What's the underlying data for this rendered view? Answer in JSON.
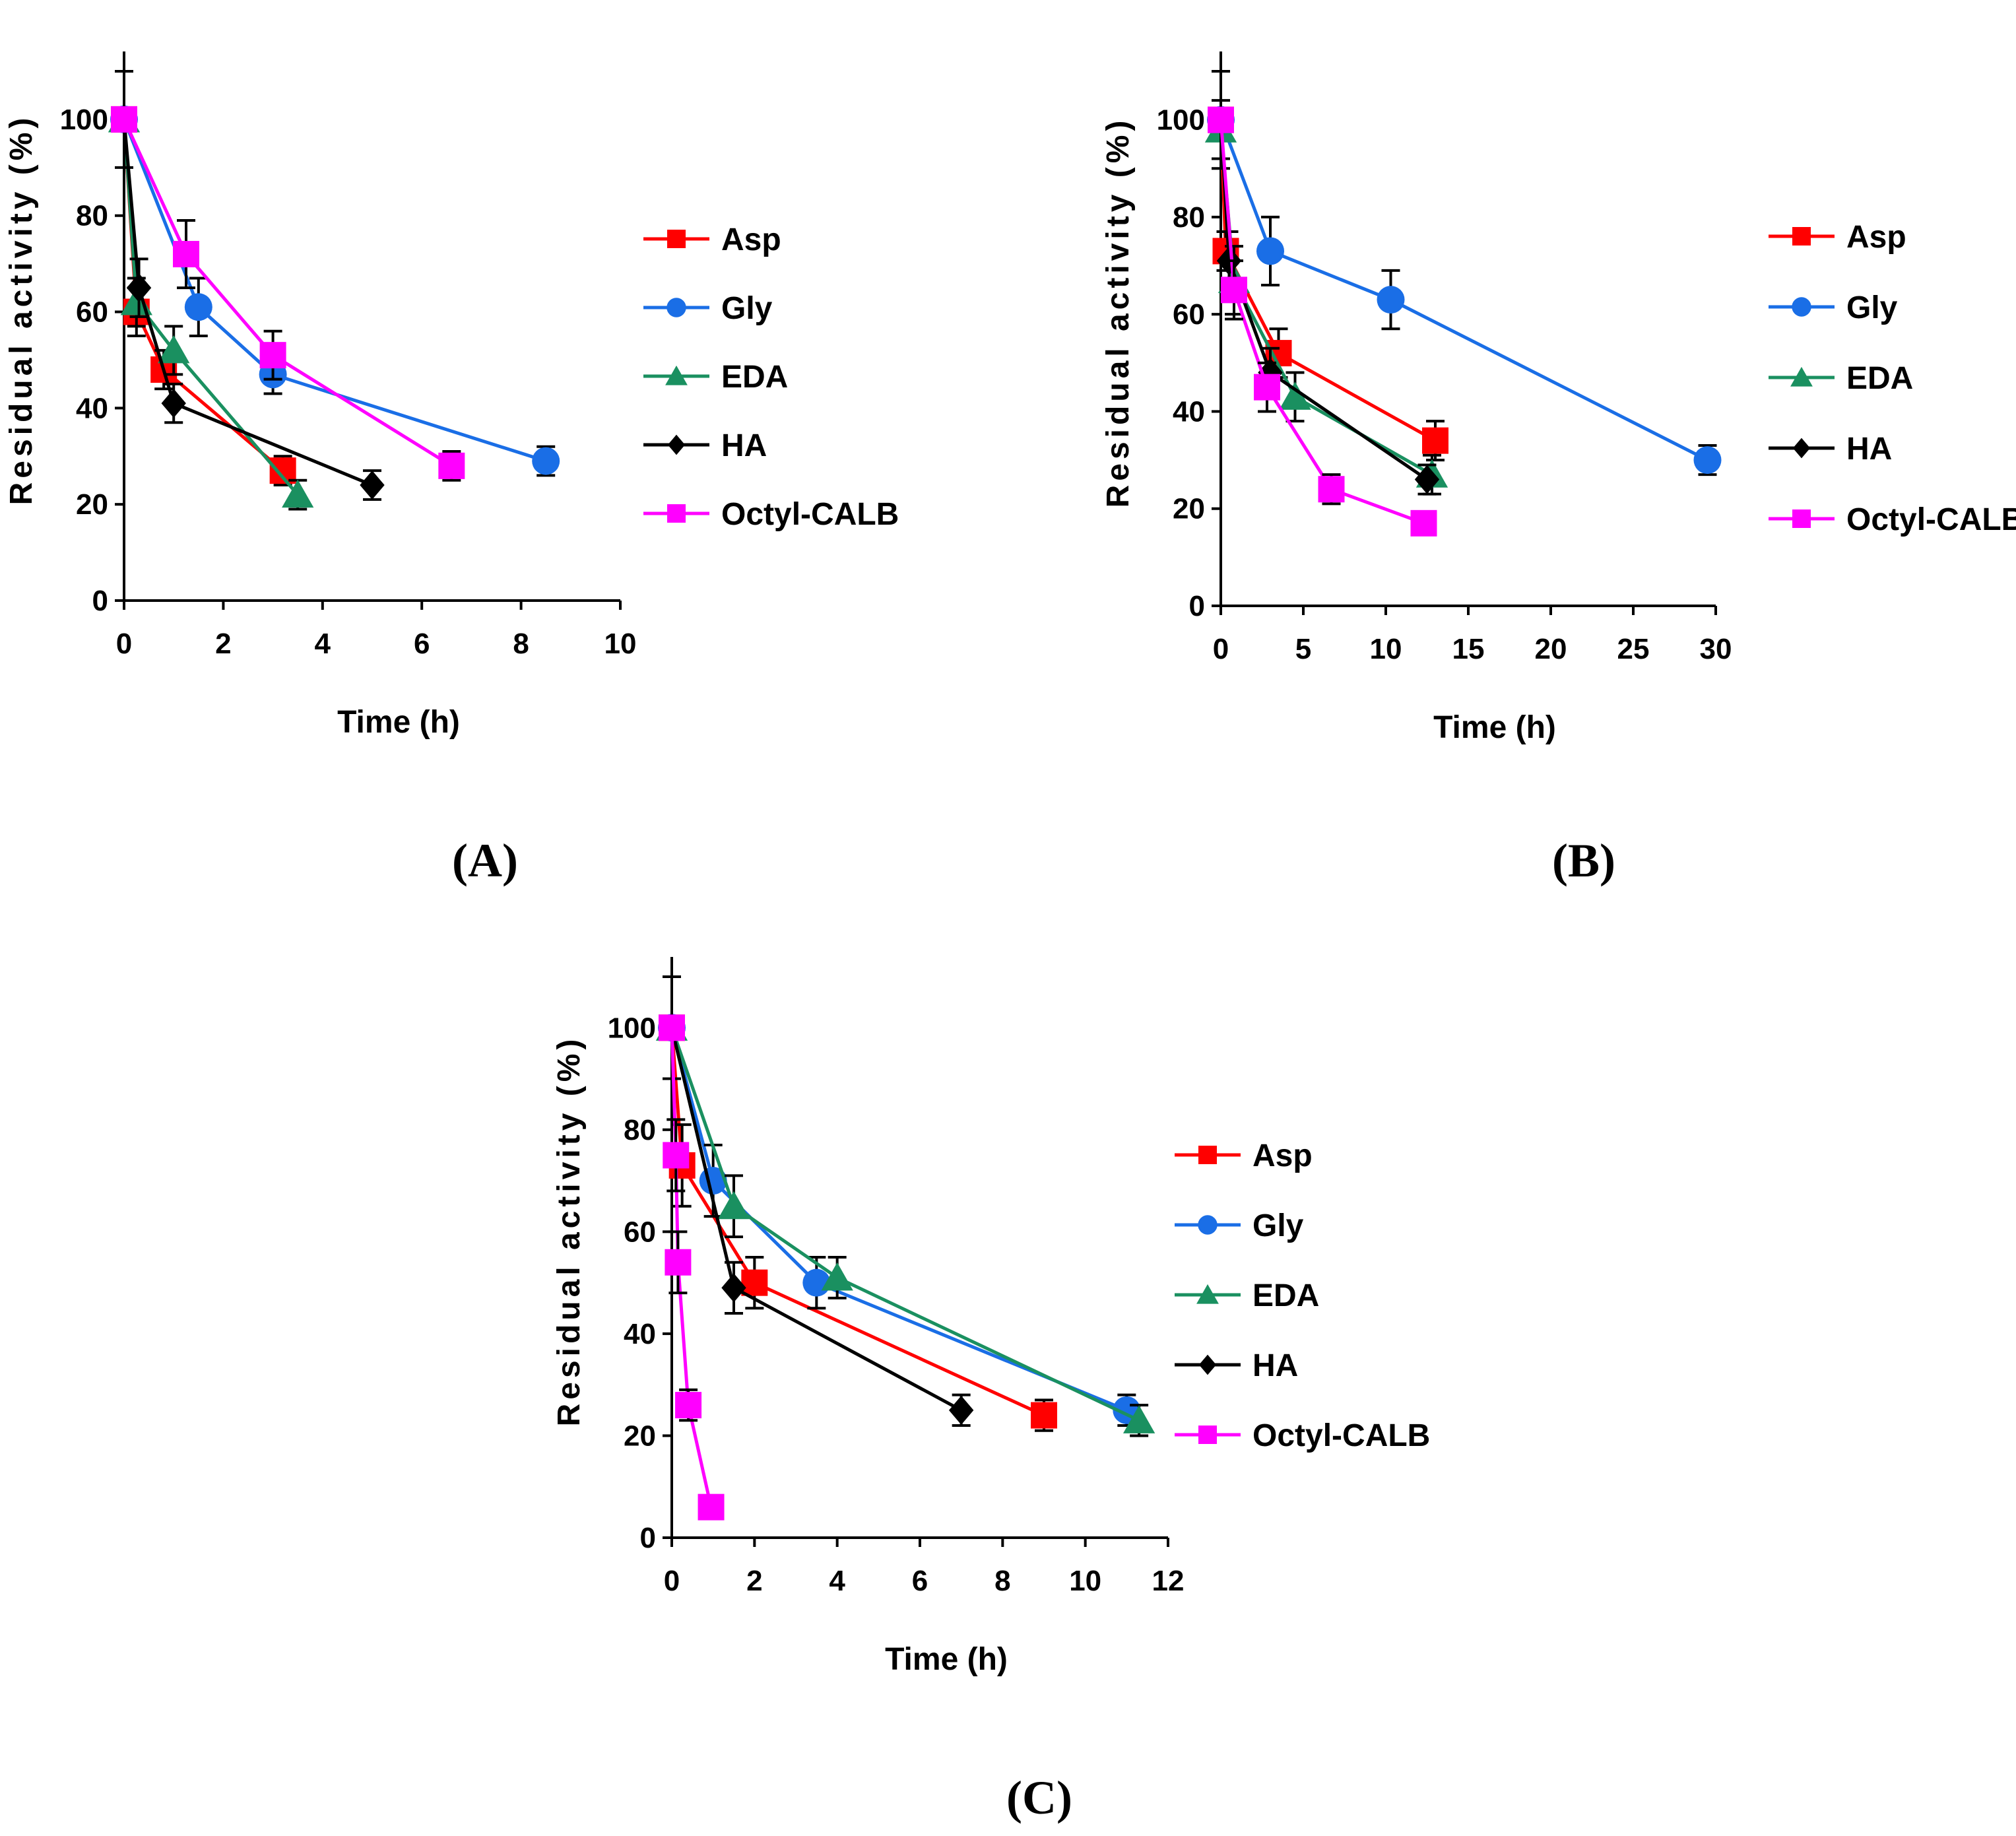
{
  "chart_data": [
    {
      "type": "line",
      "panel_label": "(A)",
      "xlabel": "Time (h)",
      "ylabel": "Residual activity (%)",
      "xlim": [
        0,
        10
      ],
      "ylim": [
        0,
        100
      ],
      "xticks": [
        0,
        2,
        4,
        6,
        8,
        10
      ],
      "yticks": [
        0,
        20,
        40,
        60,
        80,
        100
      ],
      "legend_position": "right",
      "series": [
        {
          "name": "Asp",
          "color": "#ff0000",
          "marker": "square",
          "x": [
            0,
            0.25,
            0.8,
            3.2
          ],
          "y": [
            100,
            60,
            48,
            27
          ],
          "err": [
            0,
            5,
            4,
            3
          ]
        },
        {
          "name": "Gly",
          "color": "#1a6ee6",
          "marker": "circle",
          "x": [
            0,
            1.5,
            3,
            8.5
          ],
          "y": [
            100,
            61,
            47,
            29
          ],
          "err": [
            0,
            6,
            4,
            3
          ]
        },
        {
          "name": "EDA",
          "color": "#1a9060",
          "marker": "triangle",
          "x": [
            0,
            0.25,
            1,
            3.5
          ],
          "y": [
            100,
            62,
            52,
            22
          ],
          "err": [
            0,
            5,
            5,
            3
          ]
        },
        {
          "name": "HA",
          "color": "#000000",
          "marker": "diamond",
          "x": [
            0,
            0.3,
            1,
            5
          ],
          "y": [
            100,
            65,
            41,
            24
          ],
          "err": [
            10,
            6,
            4,
            3
          ]
        },
        {
          "name": "Octyl-CALB",
          "color": "#ff00ff",
          "marker": "square",
          "x": [
            0,
            1.25,
            3,
            6.6
          ],
          "y": [
            100,
            72,
            51,
            28
          ],
          "err": [
            0,
            7,
            5,
            3
          ]
        }
      ]
    },
    {
      "type": "line",
      "panel_label": "(B)",
      "xlabel": "Time (h)",
      "ylabel": "Residual activity (%)",
      "xlim": [
        0,
        30
      ],
      "ylim": [
        0,
        100
      ],
      "xticks": [
        0,
        5,
        10,
        15,
        20,
        25,
        30
      ],
      "yticks": [
        0,
        20,
        40,
        60,
        80,
        100
      ],
      "legend_position": "right",
      "series": [
        {
          "name": "Asp",
          "color": "#ff0000",
          "marker": "square",
          "x": [
            0,
            0.3,
            3.5,
            13
          ],
          "y": [
            100,
            73,
            52,
            34
          ],
          "err": [
            0,
            4,
            5,
            4
          ]
        },
        {
          "name": "Gly",
          "color": "#1a6ee6",
          "marker": "circle",
          "x": [
            0,
            3,
            10.3,
            29.5
          ],
          "y": [
            100,
            73,
            63,
            30
          ],
          "err": [
            0,
            7,
            6,
            3
          ]
        },
        {
          "name": "EDA",
          "color": "#1a9060",
          "marker": "triangle",
          "x": [
            0,
            0.8,
            4.5,
            12.8
          ],
          "y": [
            98,
            67,
            43,
            27
          ],
          "err": [
            6,
            7,
            5,
            4
          ]
        },
        {
          "name": "HA",
          "color": "#000000",
          "marker": "diamond",
          "x": [
            0,
            0.5,
            3,
            12.5
          ],
          "y": [
            100,
            71,
            48,
            26
          ],
          "err": [
            10,
            6,
            5,
            3
          ]
        },
        {
          "name": "Octyl-CALB",
          "color": "#ff00ff",
          "marker": "square",
          "x": [
            0,
            0.8,
            2.8,
            6.7,
            12.3
          ],
          "y": [
            100,
            65,
            45,
            24,
            17
          ],
          "err": [
            0,
            6,
            5,
            3,
            2
          ]
        }
      ]
    },
    {
      "type": "line",
      "panel_label": "(C)",
      "xlabel": "Time (h)",
      "ylabel": "Residual activity (%)",
      "xlim": [
        0,
        12
      ],
      "ylim": [
        0,
        100
      ],
      "xticks": [
        0,
        2,
        4,
        6,
        8,
        10,
        12
      ],
      "yticks": [
        0,
        20,
        40,
        60,
        80,
        100
      ],
      "legend_position": "right",
      "series": [
        {
          "name": "Asp",
          "color": "#ff0000",
          "marker": "square",
          "x": [
            0,
            0.25,
            2,
            9
          ],
          "y": [
            100,
            73,
            50,
            24
          ],
          "err": [
            0,
            8,
            5,
            3
          ]
        },
        {
          "name": "Gly",
          "color": "#1a6ee6",
          "marker": "circle",
          "x": [
            0,
            1,
            3.5,
            11
          ],
          "y": [
            100,
            70,
            50,
            25
          ],
          "err": [
            0,
            7,
            5,
            3
          ]
        },
        {
          "name": "EDA",
          "color": "#1a9060",
          "marker": "triangle",
          "x": [
            0,
            1.5,
            4,
            11.3
          ],
          "y": [
            100,
            65,
            51,
            23
          ],
          "err": [
            0,
            6,
            4,
            3
          ]
        },
        {
          "name": "HA",
          "color": "#000000",
          "marker": "diamond",
          "x": [
            0,
            1.5,
            7
          ],
          "y": [
            100,
            49,
            25
          ],
          "err": [
            10,
            5,
            3
          ]
        },
        {
          "name": "Octyl-CALB",
          "color": "#ff00ff",
          "marker": "square",
          "x": [
            0,
            0.1,
            0.15,
            0.4,
            0.95
          ],
          "y": [
            100,
            75,
            54,
            26,
            6
          ],
          "err": [
            0,
            7,
            6,
            3,
            1
          ]
        }
      ]
    }
  ]
}
